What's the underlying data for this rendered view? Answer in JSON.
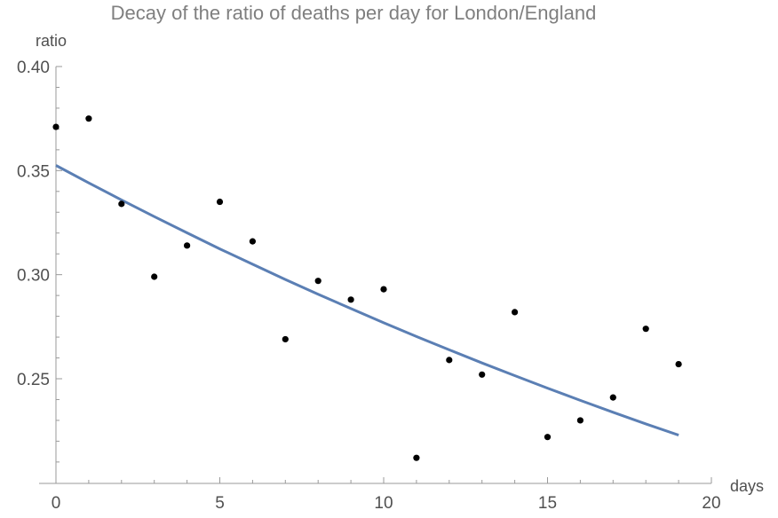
{
  "chart_data": {
    "type": "scatter",
    "title": "Decay of the ratio of deaths per day for London/England",
    "xlabel": "days",
    "ylabel": "ratio",
    "xlim": [
      0,
      20
    ],
    "ylim": [
      0.2,
      0.4
    ],
    "xticks": [
      0,
      5,
      10,
      15,
      20
    ],
    "yticks": [
      0.25,
      0.3,
      0.35,
      0.4
    ],
    "xtick_labels": [
      "0",
      "5",
      "10",
      "15",
      "20"
    ],
    "ytick_labels": [
      "0.25",
      "0.30",
      "0.35",
      "0.40"
    ],
    "grid": false,
    "points": {
      "color": "#000000",
      "x": [
        0,
        1,
        2,
        3,
        4,
        5,
        6,
        7,
        8,
        9,
        10,
        11,
        12,
        13,
        14,
        15,
        16,
        17,
        18,
        19
      ],
      "y": [
        0.371,
        0.375,
        0.334,
        0.299,
        0.314,
        0.335,
        0.316,
        0.269,
        0.297,
        0.288,
        0.293,
        0.212,
        0.259,
        0.252,
        0.282,
        0.222,
        0.23,
        0.241,
        0.274,
        0.257
      ]
    },
    "fit_curve": {
      "color": "#5b7fb4",
      "x": [
        0,
        1,
        2,
        3,
        4,
        5,
        6,
        7,
        8,
        9,
        10,
        11,
        12,
        13,
        14,
        15,
        16,
        17,
        18,
        19
      ],
      "y": [
        0.3525,
        0.3441,
        0.3359,
        0.3279,
        0.3201,
        0.3124,
        0.305,
        0.2977,
        0.2906,
        0.2837,
        0.2769,
        0.2703,
        0.2639,
        0.2576,
        0.2515,
        0.2455,
        0.2396,
        0.2339,
        0.2283,
        0.2229
      ]
    }
  }
}
